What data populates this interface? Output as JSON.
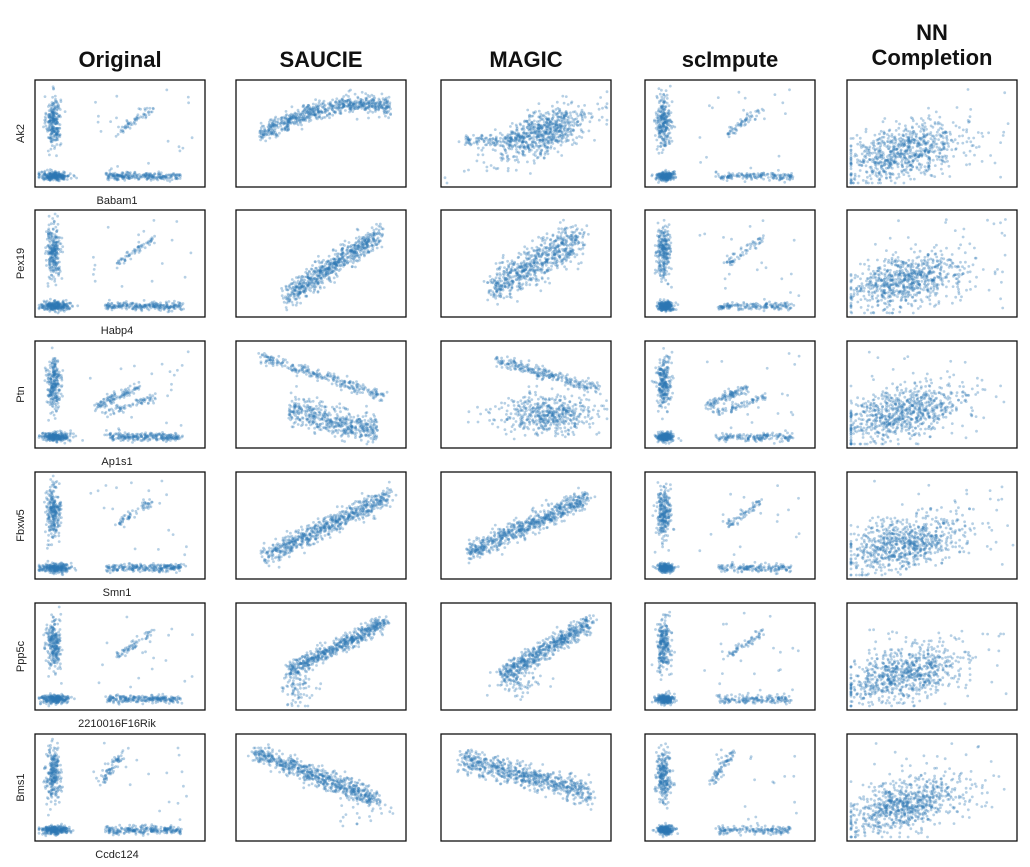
{
  "chart_data": {
    "type": "scatter",
    "layout": "grid-6x5",
    "columns": [
      "Original",
      "SAUCIE",
      "MAGIC",
      "scImpute",
      "NN\nCompletion"
    ],
    "rows": [
      {
        "ylabel": "Ak2",
        "xlabel": "Babam1"
      },
      {
        "ylabel": "Pex19",
        "xlabel": "Habp4"
      },
      {
        "ylabel": "Ptn",
        "xlabel": "Ap1s1"
      },
      {
        "ylabel": "Fbxw5",
        "xlabel": "Smn1"
      },
      {
        "ylabel": "Ppp5c",
        "xlabel": "2210016F16Rik"
      },
      {
        "ylabel": "Bms1",
        "xlabel": "Ccdc124"
      }
    ],
    "point_color": "#2f77b4",
    "axes_ticks": "none",
    "grid": false,
    "legend": "none"
  }
}
